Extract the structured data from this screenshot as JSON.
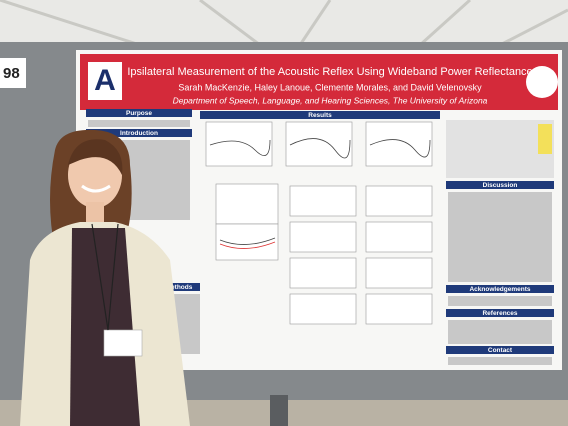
{
  "board_number": "98",
  "poster": {
    "logo": "A",
    "title": "Ipsilateral Measurement of the Acoustic Reflex Using Wideband Power Reflectance",
    "authors": "Sarah MacKenzie, Haley Lanoue, Clemente Morales, and David Velenovsky",
    "department": "Department of Speech, Language, and Hearing Sciences, The University of Arizona",
    "sections": {
      "purpose": "Purpose",
      "introduction": "Introduction",
      "methods": "Methods",
      "results": "Results",
      "discussion": "Discussion",
      "acknowledgements": "Acknowledgements",
      "references": "References",
      "contact": "Contact"
    }
  }
}
